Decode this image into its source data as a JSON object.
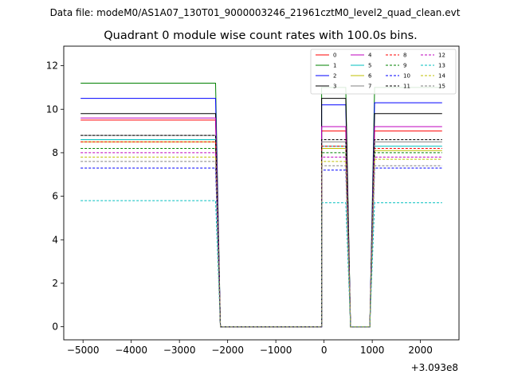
{
  "suptitle": "Data file: modeM0/AS1A07_130T01_9000003246_21961cztM0_level2_quad_clean.evt",
  "chart_data": {
    "type": "line",
    "title": "Quadrant 0 module wise count rates with 100.0s bins.",
    "xlabel": "",
    "ylabel": "",
    "x_offset_label": "+3.093e8",
    "xlim": [
      -5400,
      2800
    ],
    "ylim": [
      -0.6,
      12.9
    ],
    "x_ticks": [
      -5000,
      -4000,
      -3000,
      -2000,
      -1000,
      0,
      1000,
      2000
    ],
    "x_tick_labels": [
      "−5000",
      "−4000",
      "−3000",
      "−2000",
      "−1000",
      "0",
      "1000",
      "2000"
    ],
    "y_ticks": [
      0,
      2,
      4,
      6,
      8,
      10,
      12
    ],
    "y_tick_labels": [
      "0",
      "2",
      "4",
      "6",
      "8",
      "10",
      "12"
    ],
    "legend_position": "upper-right",
    "legend_ncol": 4,
    "segments": [
      {
        "x_start": -5050,
        "x_end": -2250
      },
      {
        "x_start": -2150,
        "x_end": -50
      },
      {
        "x_start": -50,
        "x_end": 450
      },
      {
        "x_start": 550,
        "x_end": 950
      },
      {
        "x_start": 1050,
        "x_end": 2450
      }
    ],
    "series": [
      {
        "name": "0",
        "color": "#ff0000",
        "style": "solid",
        "levels": [
          9.5,
          0.0,
          9.0,
          0.0,
          9.0
        ]
      },
      {
        "name": "1",
        "color": "#008000",
        "style": "solid",
        "levels": [
          11.2,
          0.0,
          11.0,
          0.0,
          11.0
        ]
      },
      {
        "name": "2",
        "color": "#0000ff",
        "style": "solid",
        "levels": [
          10.5,
          0.0,
          10.2,
          0.0,
          10.3
        ]
      },
      {
        "name": "3",
        "color": "#000000",
        "style": "solid",
        "levels": [
          9.8,
          0.0,
          10.5,
          0.0,
          9.8
        ]
      },
      {
        "name": "4",
        "color": "#bf00bf",
        "style": "solid",
        "levels": [
          9.6,
          0.0,
          9.2,
          0.0,
          9.2
        ]
      },
      {
        "name": "5",
        "color": "#00bfbf",
        "style": "solid",
        "levels": [
          8.6,
          0.0,
          8.3,
          0.0,
          8.3
        ]
      },
      {
        "name": "6",
        "color": "#bfbf00",
        "style": "solid",
        "levels": [
          8.5,
          0.0,
          8.2,
          0.0,
          8.1
        ]
      },
      {
        "name": "7",
        "color": "#808080",
        "style": "solid",
        "levels": [
          8.8,
          0.0,
          8.5,
          0.0,
          8.5
        ]
      },
      {
        "name": "8",
        "color": "#ff0000",
        "style": "dashed",
        "levels": [
          8.5,
          0.0,
          8.3,
          0.0,
          8.2
        ]
      },
      {
        "name": "9",
        "color": "#008000",
        "style": "dashed",
        "levels": [
          8.2,
          0.0,
          8.0,
          0.0,
          8.0
        ]
      },
      {
        "name": "10",
        "color": "#0000ff",
        "style": "dashed",
        "levels": [
          7.3,
          0.0,
          7.2,
          0.0,
          7.3
        ]
      },
      {
        "name": "11",
        "color": "#000000",
        "style": "dashed",
        "levels": [
          8.8,
          0.0,
          8.6,
          0.0,
          8.6
        ]
      },
      {
        "name": "12",
        "color": "#bf00bf",
        "style": "dashed",
        "levels": [
          8.0,
          0.0,
          7.8,
          0.0,
          7.8
        ]
      },
      {
        "name": "13",
        "color": "#00bfbf",
        "style": "dashed",
        "levels": [
          5.8,
          0.0,
          5.7,
          0.0,
          5.7
        ]
      },
      {
        "name": "14",
        "color": "#bfbf00",
        "style": "dashed",
        "levels": [
          7.8,
          0.0,
          7.6,
          0.0,
          7.7
        ]
      },
      {
        "name": "15",
        "color": "#808080",
        "style": "dashed",
        "levels": [
          7.6,
          0.0,
          7.4,
          0.0,
          7.4
        ]
      }
    ]
  }
}
